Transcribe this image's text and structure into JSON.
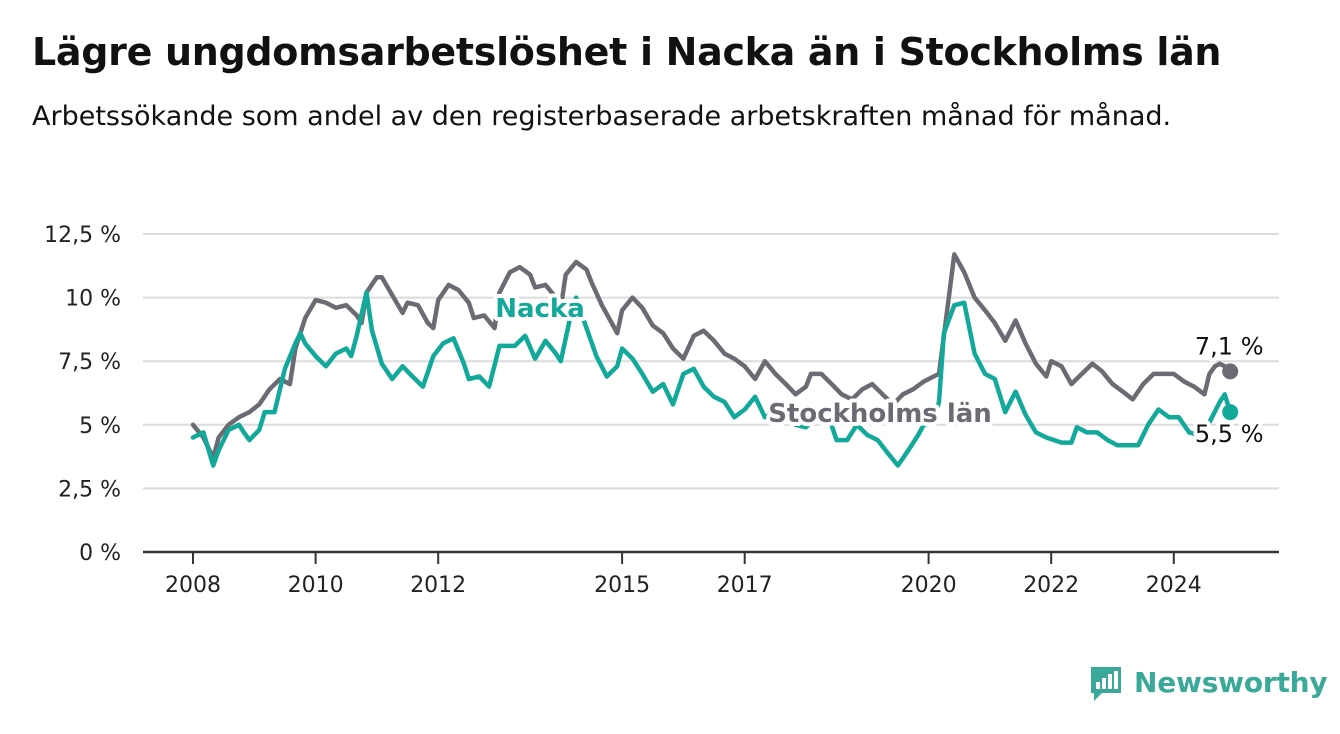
{
  "title": "Lägre ungdomsarbetslöshet i Nacka än i Stockholms län",
  "subtitle": "Arbetssökande som andel av den registerbaserade arbetskraften månad för månad.",
  "logo": {
    "text": "Newsworthy",
    "color": "#3aa99a"
  },
  "colors": {
    "nacka": "#12a99b",
    "stockholm": "#6b6b73",
    "grid": "#dcdcdc",
    "axis": "#333333"
  },
  "chart_data": {
    "type": "line",
    "x_unit": "year (decimal, monthly data)",
    "xlim": [
      2007.6,
      2025.7
    ],
    "ylim": [
      0,
      12.5
    ],
    "y_ticks": [
      0,
      2.5,
      5,
      7.5,
      10,
      12.5
    ],
    "y_tick_labels": [
      "0 %",
      "2,5 %",
      "5 %",
      "7,5 %",
      "10 %",
      "12,5 %"
    ],
    "x_ticks": [
      2008,
      2010,
      2012,
      2015,
      2017,
      2020,
      2022,
      2024
    ],
    "x_tick_labels": [
      "2008",
      "2010",
      "2012",
      "2015",
      "2017",
      "2020",
      "2022",
      "2024"
    ],
    "grid": "horizontal",
    "series": [
      {
        "name": "Stockholms län",
        "color": "#6b6b73",
        "label_text": "Stockholms län",
        "end_label": "7,1 %",
        "points": [
          [
            2008.0,
            5.0
          ],
          [
            2008.17,
            4.5
          ],
          [
            2008.33,
            3.7
          ],
          [
            2008.42,
            4.5
          ],
          [
            2008.58,
            5.0
          ],
          [
            2008.75,
            5.3
          ],
          [
            2008.92,
            5.5
          ],
          [
            2009.08,
            5.8
          ],
          [
            2009.25,
            6.4
          ],
          [
            2009.42,
            6.8
          ],
          [
            2009.58,
            6.6
          ],
          [
            2009.67,
            8.0
          ],
          [
            2009.83,
            9.2
          ],
          [
            2010.0,
            9.9
          ],
          [
            2010.17,
            9.8
          ],
          [
            2010.33,
            9.6
          ],
          [
            2010.5,
            9.7
          ],
          [
            2010.67,
            9.3
          ],
          [
            2010.75,
            9.0
          ],
          [
            2010.83,
            10.2
          ],
          [
            2011.0,
            10.8
          ],
          [
            2011.08,
            10.8
          ],
          [
            2011.25,
            10.1
          ],
          [
            2011.42,
            9.4
          ],
          [
            2011.5,
            9.8
          ],
          [
            2011.67,
            9.7
          ],
          [
            2011.83,
            9.0
          ],
          [
            2011.92,
            8.8
          ],
          [
            2012.0,
            9.9
          ],
          [
            2012.17,
            10.5
          ],
          [
            2012.33,
            10.3
          ],
          [
            2012.5,
            9.8
          ],
          [
            2012.58,
            9.2
          ],
          [
            2012.75,
            9.3
          ],
          [
            2012.92,
            8.8
          ],
          [
            2013.0,
            10.2
          ],
          [
            2013.17,
            11.0
          ],
          [
            2013.33,
            11.2
          ],
          [
            2013.5,
            10.9
          ],
          [
            2013.58,
            10.4
          ],
          [
            2013.75,
            10.5
          ],
          [
            2013.92,
            10.0
          ],
          [
            2014.0,
            9.6
          ],
          [
            2014.08,
            10.9
          ],
          [
            2014.25,
            11.4
          ],
          [
            2014.42,
            11.1
          ],
          [
            2014.5,
            10.6
          ],
          [
            2014.67,
            9.7
          ],
          [
            2014.83,
            9.0
          ],
          [
            2014.92,
            8.6
          ],
          [
            2015.0,
            9.5
          ],
          [
            2015.17,
            10.0
          ],
          [
            2015.33,
            9.6
          ],
          [
            2015.5,
            8.9
          ],
          [
            2015.67,
            8.6
          ],
          [
            2015.83,
            8.0
          ],
          [
            2016.0,
            7.6
          ],
          [
            2016.17,
            8.5
          ],
          [
            2016.33,
            8.7
          ],
          [
            2016.5,
            8.3
          ],
          [
            2016.67,
            7.8
          ],
          [
            2016.83,
            7.6
          ],
          [
            2017.0,
            7.3
          ],
          [
            2017.17,
            6.8
          ],
          [
            2017.33,
            7.5
          ],
          [
            2017.5,
            7.0
          ],
          [
            2017.67,
            6.6
          ],
          [
            2017.83,
            6.2
          ],
          [
            2018.0,
            6.5
          ],
          [
            2018.08,
            7.0
          ],
          [
            2018.25,
            7.0
          ],
          [
            2018.42,
            6.6
          ],
          [
            2018.58,
            6.2
          ],
          [
            2018.75,
            6.0
          ],
          [
            2018.92,
            6.4
          ],
          [
            2019.08,
            6.6
          ],
          [
            2019.25,
            6.2
          ],
          [
            2019.42,
            5.8
          ],
          [
            2019.58,
            6.2
          ],
          [
            2019.75,
            6.4
          ],
          [
            2019.92,
            6.7
          ],
          [
            2020.08,
            6.9
          ],
          [
            2020.17,
            7.0
          ],
          [
            2020.25,
            8.5
          ],
          [
            2020.33,
            10.0
          ],
          [
            2020.42,
            11.7
          ],
          [
            2020.58,
            11.0
          ],
          [
            2020.75,
            10.0
          ],
          [
            2020.92,
            9.5
          ],
          [
            2021.08,
            9.0
          ],
          [
            2021.25,
            8.3
          ],
          [
            2021.42,
            9.1
          ],
          [
            2021.58,
            8.2
          ],
          [
            2021.75,
            7.4
          ],
          [
            2021.92,
            6.9
          ],
          [
            2022.0,
            7.5
          ],
          [
            2022.17,
            7.3
          ],
          [
            2022.33,
            6.6
          ],
          [
            2022.5,
            7.0
          ],
          [
            2022.67,
            7.4
          ],
          [
            2022.83,
            7.1
          ],
          [
            2023.0,
            6.6
          ],
          [
            2023.17,
            6.3
          ],
          [
            2023.33,
            6.0
          ],
          [
            2023.5,
            6.6
          ],
          [
            2023.67,
            7.0
          ],
          [
            2023.83,
            7.0
          ],
          [
            2024.0,
            7.0
          ],
          [
            2024.17,
            6.7
          ],
          [
            2024.33,
            6.5
          ],
          [
            2024.5,
            6.2
          ],
          [
            2024.58,
            7.0
          ],
          [
            2024.67,
            7.3
          ],
          [
            2024.75,
            7.4
          ],
          [
            2024.83,
            7.3
          ],
          [
            2024.92,
            7.1
          ]
        ]
      },
      {
        "name": "Nacka",
        "color": "#12a99b",
        "label_text": "Nacka",
        "end_label": "5,5 %",
        "points": [
          [
            2008.0,
            4.5
          ],
          [
            2008.17,
            4.7
          ],
          [
            2008.33,
            3.4
          ],
          [
            2008.42,
            4.0
          ],
          [
            2008.58,
            4.8
          ],
          [
            2008.75,
            5.0
          ],
          [
            2008.83,
            4.7
          ],
          [
            2008.92,
            4.4
          ],
          [
            2009.08,
            4.8
          ],
          [
            2009.17,
            5.5
          ],
          [
            2009.33,
            5.5
          ],
          [
            2009.5,
            7.2
          ],
          [
            2009.67,
            8.2
          ],
          [
            2009.75,
            8.6
          ],
          [
            2009.83,
            8.2
          ],
          [
            2010.0,
            7.7
          ],
          [
            2010.17,
            7.3
          ],
          [
            2010.33,
            7.8
          ],
          [
            2010.5,
            8.0
          ],
          [
            2010.58,
            7.7
          ],
          [
            2010.67,
            8.5
          ],
          [
            2010.83,
            10.2
          ],
          [
            2010.92,
            8.7
          ],
          [
            2011.08,
            7.4
          ],
          [
            2011.25,
            6.8
          ],
          [
            2011.42,
            7.3
          ],
          [
            2011.58,
            6.9
          ],
          [
            2011.75,
            6.5
          ],
          [
            2011.92,
            7.7
          ],
          [
            2012.08,
            8.2
          ],
          [
            2012.25,
            8.4
          ],
          [
            2012.42,
            7.4
          ],
          [
            2012.5,
            6.8
          ],
          [
            2012.67,
            6.9
          ],
          [
            2012.83,
            6.5
          ],
          [
            2013.0,
            8.1
          ],
          [
            2013.25,
            8.1
          ],
          [
            2013.42,
            8.5
          ],
          [
            2013.58,
            7.6
          ],
          [
            2013.75,
            8.3
          ],
          [
            2013.92,
            7.8
          ],
          [
            2014.0,
            7.5
          ],
          [
            2014.17,
            9.4
          ],
          [
            2014.25,
            10.0
          ],
          [
            2014.42,
            8.8
          ],
          [
            2014.58,
            7.7
          ],
          [
            2014.75,
            6.9
          ],
          [
            2014.92,
            7.3
          ],
          [
            2015.0,
            8.0
          ],
          [
            2015.17,
            7.6
          ],
          [
            2015.33,
            7.0
          ],
          [
            2015.5,
            6.3
          ],
          [
            2015.67,
            6.6
          ],
          [
            2015.83,
            5.8
          ],
          [
            2016.0,
            7.0
          ],
          [
            2016.17,
            7.2
          ],
          [
            2016.33,
            6.5
          ],
          [
            2016.5,
            6.1
          ],
          [
            2016.67,
            5.9
          ],
          [
            2016.83,
            5.3
          ],
          [
            2017.0,
            5.6
          ],
          [
            2017.17,
            6.1
          ],
          [
            2017.33,
            5.3
          ],
          [
            2017.5,
            5.5
          ],
          [
            2017.67,
            5.5
          ],
          [
            2017.83,
            5.0
          ],
          [
            2018.0,
            4.9
          ],
          [
            2018.17,
            5.3
          ],
          [
            2018.33,
            5.6
          ],
          [
            2018.5,
            4.4
          ],
          [
            2018.67,
            4.4
          ],
          [
            2018.83,
            5.0
          ],
          [
            2019.0,
            4.6
          ],
          [
            2019.17,
            4.4
          ],
          [
            2019.33,
            3.9
          ],
          [
            2019.5,
            3.4
          ],
          [
            2019.67,
            4.0
          ],
          [
            2019.83,
            4.6
          ],
          [
            2019.92,
            5.0
          ],
          [
            2020.08,
            5.1
          ],
          [
            2020.17,
            5.9
          ],
          [
            2020.25,
            8.6
          ],
          [
            2020.42,
            9.7
          ],
          [
            2020.58,
            9.8
          ],
          [
            2020.75,
            7.8
          ],
          [
            2020.92,
            7.0
          ],
          [
            2021.08,
            6.8
          ],
          [
            2021.25,
            5.5
          ],
          [
            2021.42,
            6.3
          ],
          [
            2021.58,
            5.4
          ],
          [
            2021.75,
            4.7
          ],
          [
            2021.92,
            4.5
          ],
          [
            2022.17,
            4.3
          ],
          [
            2022.33,
            4.3
          ],
          [
            2022.42,
            4.9
          ],
          [
            2022.58,
            4.7
          ],
          [
            2022.75,
            4.7
          ],
          [
            2022.92,
            4.4
          ],
          [
            2023.08,
            4.2
          ],
          [
            2023.25,
            4.2
          ],
          [
            2023.42,
            4.2
          ],
          [
            2023.58,
            5.0
          ],
          [
            2023.75,
            5.6
          ],
          [
            2023.92,
            5.3
          ],
          [
            2024.08,
            5.3
          ],
          [
            2024.25,
            4.7
          ],
          [
            2024.42,
            4.6
          ],
          [
            2024.58,
            5.1
          ],
          [
            2024.75,
            5.9
          ],
          [
            2024.83,
            6.2
          ],
          [
            2024.92,
            5.5
          ]
        ]
      }
    ]
  }
}
